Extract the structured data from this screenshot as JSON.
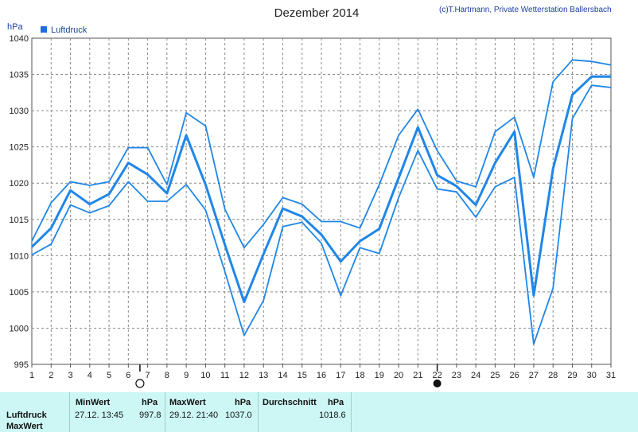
{
  "header": {
    "title": "Dezember 2014",
    "copyright": "(c)T.Hartmann, Private Wetterstation Ballersbach",
    "unit": "hPa"
  },
  "colors": {
    "series": "#1f86e8",
    "legend_swatch": "#1f6ee0",
    "grid": "#8a8a8a",
    "stats_bg": "#ccf7f5"
  },
  "chart_data": {
    "type": "line",
    "ylabel": "hPa",
    "ylim": [
      995,
      1040
    ],
    "yticks": [
      995,
      1000,
      1005,
      1010,
      1015,
      1020,
      1025,
      1030,
      1035,
      1040
    ],
    "xlim": [
      1,
      31
    ],
    "xticks": [
      1,
      2,
      3,
      4,
      5,
      6,
      7,
      8,
      9,
      10,
      11,
      12,
      13,
      14,
      15,
      16,
      17,
      18,
      19,
      20,
      21,
      22,
      23,
      24,
      25,
      26,
      27,
      28,
      29,
      30,
      31
    ],
    "legend": [
      {
        "name": "Luftdruck",
        "position": "top-left"
      }
    ],
    "moon_phases": [
      {
        "x": 6.6,
        "phase": "full-moon"
      },
      {
        "x": 22,
        "phase": "new-moon"
      }
    ],
    "x": [
      1,
      2,
      3,
      4,
      5,
      6,
      7,
      8,
      9,
      10,
      11,
      12,
      13,
      14,
      15,
      16,
      17,
      18,
      19,
      20,
      21,
      22,
      23,
      24,
      25,
      26,
      27,
      28,
      29,
      30,
      31
    ],
    "series": [
      {
        "name": "Luftdruck",
        "role": "max",
        "values": [
          1012.0,
          1017.3,
          1020.2,
          1019.7,
          1020.2,
          1024.9,
          1024.9,
          1019.8,
          1029.7,
          1027.9,
          1016.4,
          1011.1,
          1014.3,
          1018.0,
          1017.1,
          1014.7,
          1014.7,
          1013.8,
          1019.8,
          1026.6,
          1030.2,
          1024.5,
          1020.3,
          1019.5,
          1027.1,
          1029.1,
          1020.8,
          1034.0,
          1037.0,
          1036.8,
          1036.3
        ]
      },
      {
        "name": "Luftdruck",
        "role": "mean",
        "values": [
          1011.2,
          1013.8,
          1019.0,
          1017.1,
          1018.5,
          1022.8,
          1021.2,
          1018.6,
          1026.6,
          1019.8,
          1011.5,
          1003.6,
          1010.2,
          1016.5,
          1015.4,
          1012.9,
          1009.2,
          1012.0,
          1013.7,
          1020.7,
          1027.7,
          1021.1,
          1019.6,
          1017.0,
          1022.8,
          1027.1,
          1004.5,
          1022.0,
          1032.2,
          1034.7,
          1034.7
        ]
      },
      {
        "name": "Luftdruck",
        "role": "min",
        "values": [
          1010.1,
          1011.6,
          1017.0,
          1015.9,
          1016.9,
          1020.2,
          1017.5,
          1017.5,
          1019.8,
          1016.3,
          1007.8,
          999.0,
          1003.8,
          1014.0,
          1014.6,
          1011.7,
          1004.5,
          1011.1,
          1010.3,
          1018.0,
          1024.5,
          1019.2,
          1018.8,
          1015.3,
          1019.5,
          1020.8,
          997.8,
          1005.5,
          1028.9,
          1033.5,
          1033.2
        ]
      }
    ]
  },
  "stats": {
    "row_label": "Luftdruck",
    "row_label_2": "MaxWert",
    "min_header": "MinWert",
    "min_unit": "hPa",
    "min_time": "27.12.  13:45",
    "min_value": "997.8",
    "max_header": "MaxWert",
    "max_unit": "hPa",
    "max_time": "29.12.  21:40",
    "max_value": "1037.0",
    "avg_header": "Durchschnitt",
    "avg_unit": "hPa",
    "avg_value": "1018.6"
  }
}
